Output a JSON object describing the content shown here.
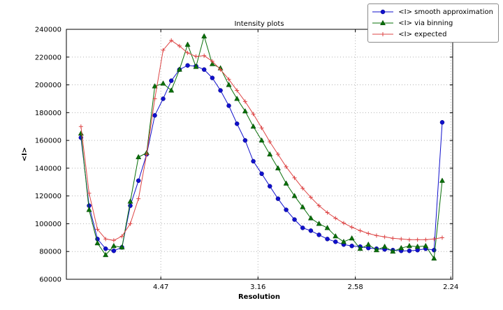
{
  "chart_data": {
    "type": "line",
    "title": "Intensity plots",
    "xlabel": "Resolution",
    "ylabel": "<I>",
    "grid": true,
    "legend_position": "upper-right",
    "x_axis_note": "x values are 1/d^2; tick labels show resolution d in Angstroms",
    "xlim": [
      0.0015,
      0.2003
    ],
    "ylim": [
      60000,
      240000
    ],
    "x_ticks": [
      {
        "value": 0.0501,
        "label": "4.47"
      },
      {
        "value": 0.1001,
        "label": "3.16"
      },
      {
        "value": 0.1502,
        "label": "2.58"
      },
      {
        "value": 0.1993,
        "label": "2.24"
      }
    ],
    "y_ticks": [
      {
        "value": 60000,
        "label": "60000"
      },
      {
        "value": 80000,
        "label": "80000"
      },
      {
        "value": 100000,
        "label": "100000"
      },
      {
        "value": 120000,
        "label": "120000"
      },
      {
        "value": 140000,
        "label": "140000"
      },
      {
        "value": 160000,
        "label": "160000"
      },
      {
        "value": 180000,
        "label": "180000"
      },
      {
        "value": 200000,
        "label": "200000"
      },
      {
        "value": 220000,
        "label": "220000"
      },
      {
        "value": 240000,
        "label": "240000"
      }
    ],
    "colors": {
      "grid": "#b3b3b3",
      "frame": "#000000"
    },
    "x": [
      0.009,
      0.0132,
      0.0175,
      0.0217,
      0.0259,
      0.0301,
      0.0344,
      0.0386,
      0.0428,
      0.047,
      0.0513,
      0.0555,
      0.0597,
      0.0639,
      0.0682,
      0.0724,
      0.0766,
      0.0808,
      0.0851,
      0.0893,
      0.0935,
      0.0977,
      0.102,
      0.1062,
      0.1104,
      0.1146,
      0.1189,
      0.1231,
      0.1273,
      0.1315,
      0.1358,
      0.14,
      0.1442,
      0.1484,
      0.1527,
      0.1569,
      0.1611,
      0.1653,
      0.1695,
      0.1738,
      0.178,
      0.1822,
      0.1864,
      0.1907,
      0.1949
    ],
    "series": [
      {
        "name": "<I> smooth approximation",
        "slug": "smooth-approximation",
        "color": "#1010cc",
        "marker": "circle",
        "values": [
          162000,
          113000,
          89000,
          82000,
          80500,
          83000,
          113000,
          131000,
          150000,
          178000,
          190000,
          203000,
          211000,
          214000,
          213500,
          211000,
          205000,
          196000,
          185000,
          172000,
          160000,
          145000,
          136000,
          127000,
          118000,
          110000,
          103000,
          97000,
          95000,
          92000,
          89000,
          87000,
          85000,
          84000,
          83500,
          82500,
          82000,
          81500,
          81000,
          80500,
          80500,
          81000,
          82000,
          81000,
          173000
        ]
      },
      {
        "name": "<I> via binning",
        "slug": "via-binning",
        "color": "#0a700a",
        "marker": "triangle",
        "values": [
          165000,
          110000,
          86000,
          77500,
          84000,
          83000,
          116000,
          148000,
          151000,
          199000,
          201000,
          196000,
          211000,
          229000,
          213000,
          235000,
          215000,
          212000,
          200000,
          190000,
          181000,
          170000,
          160000,
          150000,
          140000,
          129000,
          120000,
          112000,
          104000,
          100000,
          97000,
          91000,
          87000,
          89500,
          82000,
          85000,
          81000,
          83500,
          80000,
          82500,
          84000,
          83500,
          84000,
          75000,
          131000
        ]
      },
      {
        "name": "<I> expected",
        "slug": "expected",
        "color": "#dd4444",
        "marker": "plus",
        "values": [
          170000,
          122000,
          96000,
          89000,
          88000,
          91000,
          100000,
          118000,
          150000,
          190000,
          225000,
          232000,
          228000,
          223000,
          220500,
          221000,
          217000,
          211000,
          204000,
          196000,
          188000,
          179000,
          169000,
          159000,
          150000,
          141000,
          133000,
          125500,
          119000,
          113000,
          108000,
          104000,
          100500,
          97500,
          95000,
          93000,
          91500,
          90500,
          89500,
          89000,
          88500,
          88500,
          88500,
          89000,
          90000
        ]
      }
    ]
  }
}
